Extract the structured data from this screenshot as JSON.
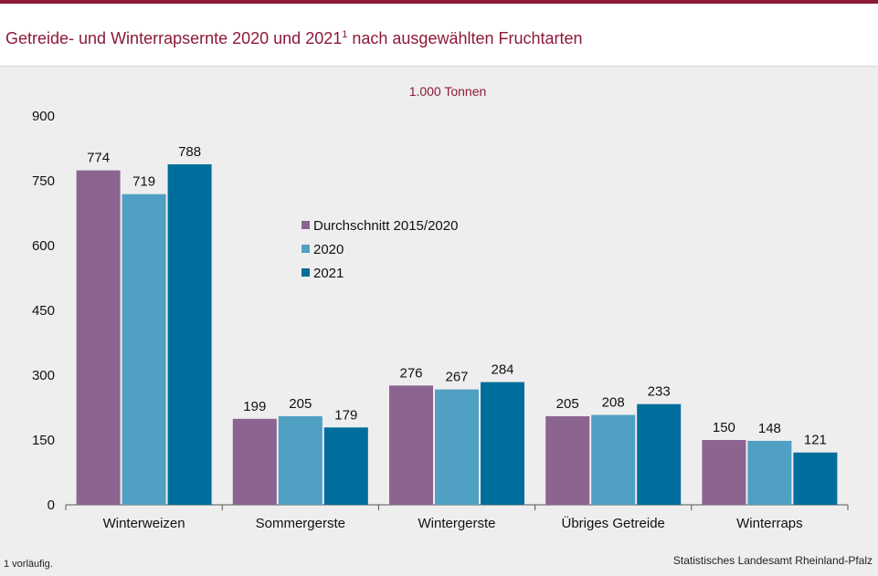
{
  "header": {
    "title_main": "Getreide- und Winterrapsernte 2020 und 2021",
    "title_sup": "1",
    "title_rest": " nach ausgewählten Fruchtarten"
  },
  "colors": {
    "accent": "#8b1a38",
    "series_avg": "#8b6590",
    "series_2020": "#4fa0c3",
    "series_2021": "#006e9c"
  },
  "chart_data": {
    "type": "bar",
    "unit_label": "1.000 Tonnen",
    "categories": [
      "Winterweizen",
      "Sommergerste",
      "Wintergerste",
      "Übriges Getreide",
      "Winterraps"
    ],
    "series": [
      {
        "name": "Durchschnitt 2015/2020",
        "values": [
          774,
          199,
          276,
          205,
          150
        ]
      },
      {
        "name": "2020",
        "values": [
          719,
          205,
          267,
          208,
          148
        ]
      },
      {
        "name": "2021",
        "values": [
          788,
          179,
          284,
          233,
          121
        ]
      }
    ],
    "yticks": [
      "0",
      "150",
      "300",
      "450",
      "600",
      "750",
      "900"
    ],
    "ylim": [
      0,
      900
    ],
    "grid": false,
    "legend_position": "upper-center"
  },
  "footer": {
    "footnote": "1 vorläufig.",
    "source": "Statistisches Landesamt Rheinland-Pfalz"
  }
}
